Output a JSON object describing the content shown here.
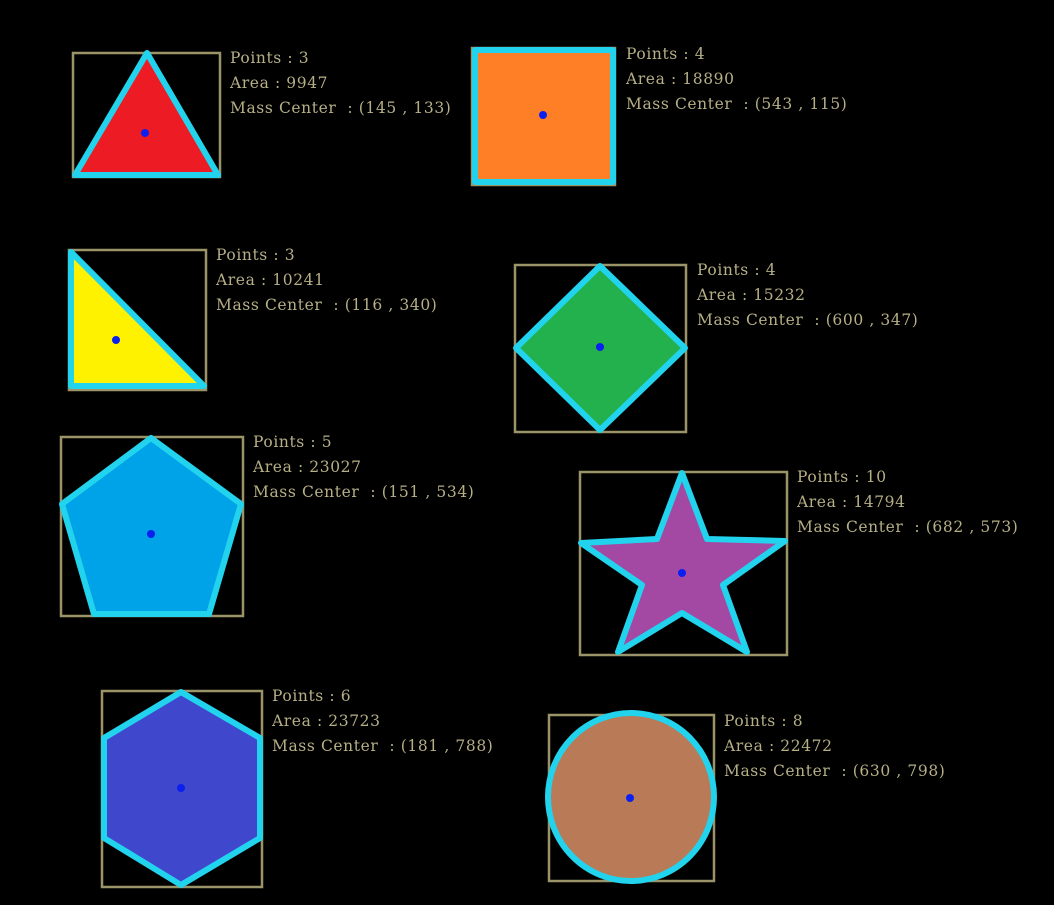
{
  "colors": {
    "background": "#000000",
    "outline": "#22d3ee",
    "bounding_box": "#9b9468",
    "center_dot": "#0b1ff0",
    "text": "#b6af86"
  },
  "shapes": [
    {
      "name": "triangle",
      "fill": "#ed1c24",
      "points_label": "Points : 3",
      "area_label": "Area : 9947",
      "center_label": "Mass Center  : (145 , 133)"
    },
    {
      "name": "square",
      "fill": "#ff7f27",
      "points_label": "Points : 4",
      "area_label": "Area : 18890",
      "center_label": "Mass Center  : (543 , 115)"
    },
    {
      "name": "right-triangle",
      "fill": "#fff200",
      "points_label": "Points : 3",
      "area_label": "Area : 10241",
      "center_label": "Mass Center  : (116 , 340)"
    },
    {
      "name": "diamond",
      "fill": "#22b14c",
      "points_label": "Points : 4",
      "area_label": "Area : 15232",
      "center_label": "Mass Center  : (600 , 347)"
    },
    {
      "name": "pentagon",
      "fill": "#00a2e8",
      "points_label": "Points : 5",
      "area_label": "Area : 23027",
      "center_label": "Mass Center  : (151 , 534)"
    },
    {
      "name": "star",
      "fill": "#a349a4",
      "points_label": "Points : 10",
      "area_label": "Area : 14794",
      "center_label": "Mass Center  : (682 , 573)"
    },
    {
      "name": "hexagon",
      "fill": "#3f48cc",
      "points_label": "Points : 6",
      "area_label": "Area : 23723",
      "center_label": "Mass Center  : (181 , 788)"
    },
    {
      "name": "circle",
      "fill": "#b97a57",
      "points_label": "Points : 8",
      "area_label": "Area : 22472",
      "center_label": "Mass Center  : (630 , 798)"
    }
  ]
}
